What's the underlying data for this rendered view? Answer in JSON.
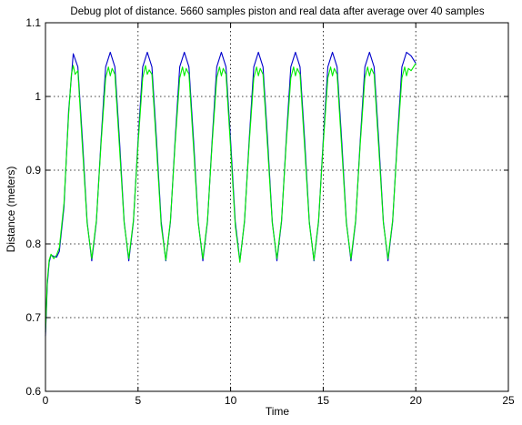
{
  "chart_data": {
    "type": "line",
    "title": "Debug plot of distance. 5660 samples piston and real data after average over 40 samples",
    "xlabel": "Time",
    "ylabel": "Distance (meters)",
    "xlim": [
      0,
      25
    ],
    "ylim": [
      0.6,
      1.1
    ],
    "x_ticks": [
      "0",
      "5",
      "10",
      "15",
      "20",
      "25"
    ],
    "y_ticks": [
      "0.6",
      "0.7",
      "0.8",
      "0.9",
      "1",
      "1.1"
    ],
    "grid": true,
    "legend": "none",
    "colors": {
      "piston": "#0000cc",
      "real": "#00ee00"
    },
    "series": [
      {
        "key": "piston",
        "color": "#0000cc",
        "x": [
          0.0,
          0.1,
          0.2,
          0.3,
          0.45,
          0.6,
          0.75,
          1.0,
          1.25,
          1.5,
          1.75,
          2.0,
          2.25,
          2.5,
          2.75,
          3.0,
          3.25,
          3.5,
          3.75,
          4.0,
          4.25,
          4.5,
          4.75,
          5.0,
          5.25,
          5.5,
          5.75,
          6.0,
          6.25,
          6.5,
          6.75,
          7.0,
          7.25,
          7.5,
          7.75,
          8.0,
          8.25,
          8.5,
          8.75,
          9.0,
          9.25,
          9.5,
          9.75,
          10.0,
          10.25,
          10.5,
          10.75,
          11.0,
          11.25,
          11.5,
          11.75,
          12.0,
          12.25,
          12.5,
          12.75,
          13.0,
          13.25,
          13.5,
          13.75,
          14.0,
          14.25,
          14.5,
          14.75,
          15.0,
          15.25,
          15.5,
          15.75,
          16.0,
          16.25,
          16.5,
          16.75,
          17.0,
          17.25,
          17.5,
          17.75,
          18.0,
          18.25,
          18.5,
          18.75,
          19.0,
          19.25,
          19.5,
          19.75,
          20.0
        ],
        "y": [
          0.675,
          0.745,
          0.775,
          0.785,
          0.783,
          0.782,
          0.79,
          0.85,
          0.98,
          1.058,
          1.04,
          0.94,
          0.83,
          0.777,
          0.83,
          0.94,
          1.04,
          1.06,
          1.04,
          0.94,
          0.83,
          0.777,
          0.83,
          0.94,
          1.04,
          1.06,
          1.04,
          0.94,
          0.83,
          0.777,
          0.83,
          0.94,
          1.04,
          1.06,
          1.04,
          0.94,
          0.83,
          0.777,
          0.83,
          0.94,
          1.04,
          1.06,
          1.04,
          0.94,
          0.83,
          0.777,
          0.83,
          0.94,
          1.04,
          1.06,
          1.04,
          0.94,
          0.83,
          0.777,
          0.83,
          0.94,
          1.04,
          1.06,
          1.04,
          0.94,
          0.83,
          0.777,
          0.83,
          0.94,
          1.04,
          1.06,
          1.04,
          0.94,
          0.83,
          0.777,
          0.83,
          0.94,
          1.04,
          1.06,
          1.04,
          0.94,
          0.83,
          0.777,
          0.83,
          0.94,
          1.04,
          1.06,
          1.055,
          1.045
        ]
      },
      {
        "key": "real",
        "color": "#00ee00",
        "x": [
          0.0,
          0.1,
          0.2,
          0.3,
          0.45,
          0.6,
          0.75,
          1.0,
          1.25,
          1.4,
          1.5,
          1.6,
          1.75,
          2.0,
          2.25,
          2.5,
          2.75,
          3.0,
          3.25,
          3.4,
          3.5,
          3.6,
          3.75,
          4.0,
          4.25,
          4.5,
          4.75,
          5.0,
          5.25,
          5.4,
          5.5,
          5.6,
          5.75,
          6.0,
          6.25,
          6.5,
          6.75,
          7.0,
          7.25,
          7.4,
          7.5,
          7.6,
          7.75,
          8.0,
          8.25,
          8.5,
          8.75,
          9.0,
          9.25,
          9.4,
          9.5,
          9.6,
          9.75,
          10.0,
          10.25,
          10.5,
          10.75,
          11.0,
          11.25,
          11.4,
          11.5,
          11.6,
          11.75,
          12.0,
          12.25,
          12.5,
          12.75,
          13.0,
          13.25,
          13.4,
          13.5,
          13.6,
          13.75,
          14.0,
          14.25,
          14.5,
          14.75,
          15.0,
          15.25,
          15.4,
          15.5,
          15.6,
          15.75,
          16.0,
          16.25,
          16.5,
          16.75,
          17.0,
          17.25,
          17.4,
          17.5,
          17.6,
          17.75,
          18.0,
          18.25,
          18.5,
          18.75,
          19.0,
          19.25,
          19.4,
          19.5,
          19.6,
          19.75,
          20.0
        ],
        "y": [
          0.68,
          0.75,
          0.778,
          0.786,
          0.78,
          0.785,
          0.795,
          0.855,
          0.975,
          1.03,
          1.042,
          1.03,
          1.035,
          0.93,
          0.828,
          0.78,
          0.832,
          0.935,
          1.025,
          1.04,
          1.028,
          1.038,
          1.03,
          0.93,
          0.828,
          0.78,
          0.832,
          0.935,
          1.025,
          1.042,
          1.03,
          1.036,
          1.03,
          0.93,
          0.825,
          0.778,
          0.832,
          0.935,
          1.025,
          1.04,
          1.028,
          1.038,
          1.03,
          0.93,
          0.828,
          0.78,
          0.832,
          0.935,
          1.025,
          1.04,
          1.028,
          1.038,
          1.03,
          0.93,
          0.825,
          0.775,
          0.832,
          0.935,
          1.025,
          1.04,
          1.028,
          1.038,
          1.03,
          0.93,
          0.828,
          0.78,
          0.832,
          0.935,
          1.025,
          1.04,
          1.028,
          1.038,
          1.03,
          0.93,
          0.828,
          0.778,
          0.832,
          0.935,
          1.025,
          1.04,
          1.028,
          1.038,
          1.03,
          0.93,
          0.828,
          0.78,
          0.832,
          0.935,
          1.025,
          1.04,
          1.028,
          1.038,
          1.03,
          0.93,
          0.828,
          0.78,
          0.832,
          0.935,
          1.025,
          1.04,
          1.028,
          1.038,
          1.035,
          1.045
        ]
      }
    ]
  }
}
